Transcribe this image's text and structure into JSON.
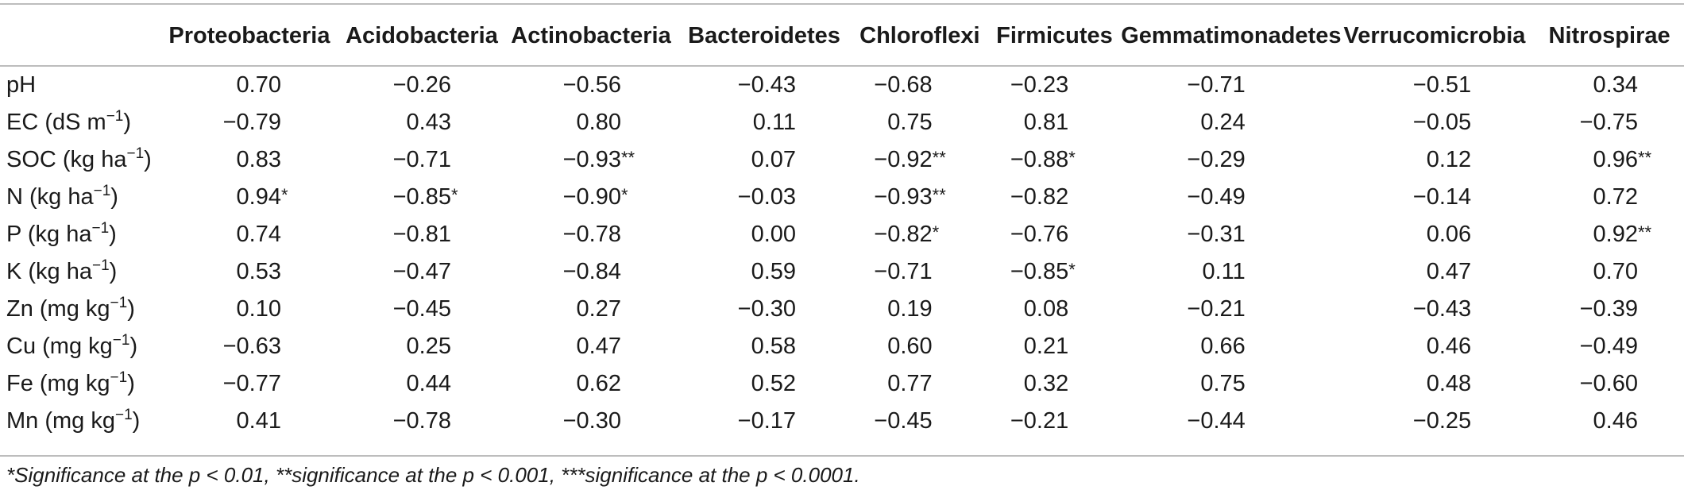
{
  "table": {
    "columns": [
      "",
      "Proteobacteria",
      "Acidobacteria",
      "Actinobacteria",
      "Bacteroidetes",
      "Chloroflexi",
      "Firmicutes",
      "Gemmatimonadetes",
      "Verrucomicrobia",
      "Nitrospirae"
    ],
    "rows": [
      {
        "label": "pH",
        "unit": "",
        "sup": "",
        "cells": [
          {
            "v": "0.70",
            "s": ""
          },
          {
            "v": "−0.26",
            "s": ""
          },
          {
            "v": "−0.56",
            "s": ""
          },
          {
            "v": "−0.43",
            "s": ""
          },
          {
            "v": "−0.68",
            "s": ""
          },
          {
            "v": "−0.23",
            "s": ""
          },
          {
            "v": "−0.71",
            "s": ""
          },
          {
            "v": "−0.51",
            "s": ""
          },
          {
            "v": "0.34",
            "s": ""
          }
        ]
      },
      {
        "label": "EC (dS m",
        "unit": "",
        "sup": "−1",
        "close": ")",
        "cells": [
          {
            "v": "−0.79",
            "s": ""
          },
          {
            "v": "0.43",
            "s": ""
          },
          {
            "v": "0.80",
            "s": ""
          },
          {
            "v": "0.11",
            "s": ""
          },
          {
            "v": "0.75",
            "s": ""
          },
          {
            "v": "0.81",
            "s": ""
          },
          {
            "v": "0.24",
            "s": ""
          },
          {
            "v": "−0.05",
            "s": ""
          },
          {
            "v": "−0.75",
            "s": ""
          }
        ]
      },
      {
        "label": "SOC (kg ha",
        "sup": "−1",
        "close": ")",
        "cells": [
          {
            "v": "0.83",
            "s": ""
          },
          {
            "v": "−0.71",
            "s": ""
          },
          {
            "v": "−0.93",
            "s": "**"
          },
          {
            "v": "0.07",
            "s": ""
          },
          {
            "v": "−0.92",
            "s": "**"
          },
          {
            "v": "−0.88",
            "s": "*"
          },
          {
            "v": "−0.29",
            "s": ""
          },
          {
            "v": "0.12",
            "s": ""
          },
          {
            "v": "0.96",
            "s": "**"
          }
        ]
      },
      {
        "label": "N (kg ha",
        "sup": "−1",
        "close": ")",
        "cells": [
          {
            "v": "0.94",
            "s": "*"
          },
          {
            "v": "−0.85",
            "s": "*"
          },
          {
            "v": "−0.90",
            "s": "*"
          },
          {
            "v": "−0.03",
            "s": ""
          },
          {
            "v": "−0.93",
            "s": "**"
          },
          {
            "v": "−0.82",
            "s": ""
          },
          {
            "v": "−0.49",
            "s": ""
          },
          {
            "v": "−0.14",
            "s": ""
          },
          {
            "v": "0.72",
            "s": ""
          }
        ]
      },
      {
        "label": "P (kg ha",
        "sup": "−1",
        "close": ")",
        "cells": [
          {
            "v": "0.74",
            "s": ""
          },
          {
            "v": "−0.81",
            "s": ""
          },
          {
            "v": "−0.78",
            "s": ""
          },
          {
            "v": "0.00",
            "s": ""
          },
          {
            "v": "−0.82",
            "s": "*"
          },
          {
            "v": "−0.76",
            "s": ""
          },
          {
            "v": "−0.31",
            "s": ""
          },
          {
            "v": "0.06",
            "s": ""
          },
          {
            "v": "0.92",
            "s": "**"
          }
        ]
      },
      {
        "label": "K (kg ha",
        "sup": "−1",
        "close": ")",
        "cells": [
          {
            "v": "0.53",
            "s": ""
          },
          {
            "v": "−0.47",
            "s": ""
          },
          {
            "v": "−0.84",
            "s": ""
          },
          {
            "v": "0.59",
            "s": ""
          },
          {
            "v": "−0.71",
            "s": ""
          },
          {
            "v": "−0.85",
            "s": "*"
          },
          {
            "v": "0.11",
            "s": ""
          },
          {
            "v": "0.47",
            "s": ""
          },
          {
            "v": "0.70",
            "s": ""
          }
        ]
      },
      {
        "label": "Zn (mg kg",
        "sup": "−1",
        "close": ")",
        "cells": [
          {
            "v": "0.10",
            "s": ""
          },
          {
            "v": "−0.45",
            "s": ""
          },
          {
            "v": "0.27",
            "s": ""
          },
          {
            "v": "−0.30",
            "s": ""
          },
          {
            "v": "0.19",
            "s": ""
          },
          {
            "v": "0.08",
            "s": ""
          },
          {
            "v": "−0.21",
            "s": ""
          },
          {
            "v": "−0.43",
            "s": ""
          },
          {
            "v": "−0.39",
            "s": ""
          }
        ]
      },
      {
        "label": "Cu (mg kg",
        "sup": "−1",
        "close": ")",
        "cells": [
          {
            "v": "−0.63",
            "s": ""
          },
          {
            "v": "0.25",
            "s": ""
          },
          {
            "v": "0.47",
            "s": ""
          },
          {
            "v": "0.58",
            "s": ""
          },
          {
            "v": "0.60",
            "s": ""
          },
          {
            "v": "0.21",
            "s": ""
          },
          {
            "v": "0.66",
            "s": ""
          },
          {
            "v": "0.46",
            "s": ""
          },
          {
            "v": "−0.49",
            "s": ""
          }
        ]
      },
      {
        "label": "Fe (mg kg",
        "sup": "−1",
        "close": ")",
        "cells": [
          {
            "v": "−0.77",
            "s": ""
          },
          {
            "v": "0.44",
            "s": ""
          },
          {
            "v": "0.62",
            "s": ""
          },
          {
            "v": "0.52",
            "s": ""
          },
          {
            "v": "0.77",
            "s": ""
          },
          {
            "v": "0.32",
            "s": ""
          },
          {
            "v": "0.75",
            "s": ""
          },
          {
            "v": "0.48",
            "s": ""
          },
          {
            "v": "−0.60",
            "s": ""
          }
        ]
      },
      {
        "label": "Mn (mg kg",
        "sup": "−1",
        "close": ")",
        "cells": [
          {
            "v": "0.41",
            "s": ""
          },
          {
            "v": "−0.78",
            "s": ""
          },
          {
            "v": "−0.30",
            "s": ""
          },
          {
            "v": "−0.17",
            "s": ""
          },
          {
            "v": "−0.45",
            "s": ""
          },
          {
            "v": "−0.21",
            "s": ""
          },
          {
            "v": "−0.44",
            "s": ""
          },
          {
            "v": "−0.25",
            "s": ""
          },
          {
            "v": "0.46",
            "s": ""
          }
        ]
      }
    ]
  },
  "footnote": "*Significance at the p < 0.01, **significance at the p < 0.001, ***significance at the p < 0.0001."
}
